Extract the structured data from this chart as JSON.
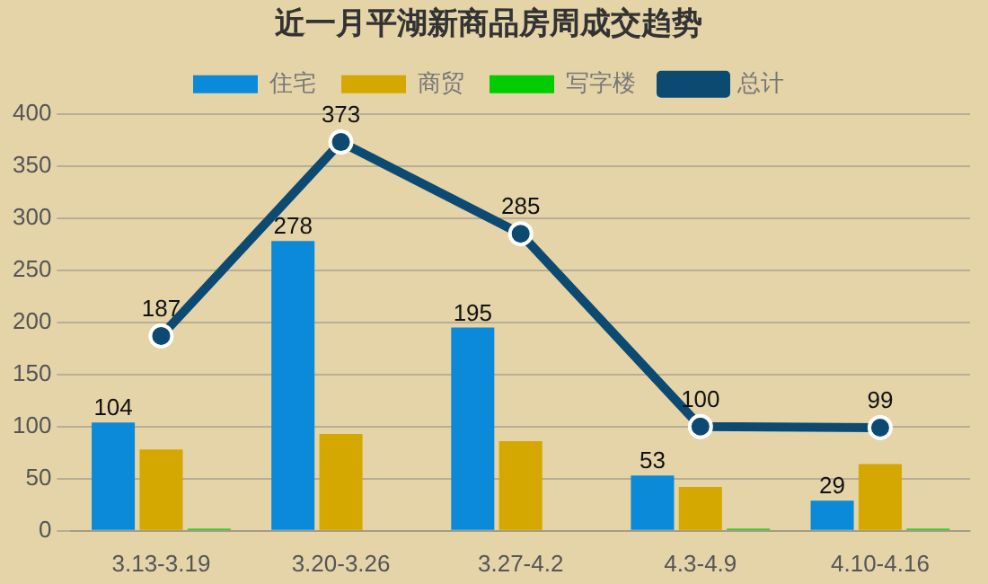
{
  "chart_data": {
    "type": "bar",
    "title": "近一月平湖新商品房周成交趋势",
    "categories": [
      "3.13-3.19",
      "3.20-3.26",
      "3.27-4.2",
      "4.3-4.9",
      "4.10-4.16"
    ],
    "series": [
      {
        "name": "住宅",
        "color": "#0a8ad8",
        "values": [
          104,
          278,
          195,
          53,
          29
        ],
        "value_labels": [
          "104",
          "278",
          "195",
          "53",
          "29"
        ]
      },
      {
        "name": "商贸",
        "color": "#d4a800",
        "values": [
          78,
          93,
          86,
          42,
          64
        ]
      },
      {
        "name": "写字楼",
        "color": "#00cc00",
        "values": [
          2,
          0,
          1,
          2,
          2
        ]
      },
      {
        "name": "总计",
        "type": "line",
        "color": "#0d4a72",
        "values": [
          187,
          373,
          285,
          100,
          99
        ],
        "value_labels": [
          "187",
          "373",
          "285",
          "100",
          "99"
        ],
        "marker": "circle"
      }
    ],
    "ylim": [
      0,
      400
    ],
    "yticks": [
      0,
      50,
      100,
      150,
      200,
      250,
      300,
      350,
      400
    ],
    "grid": "y",
    "legend": "top"
  }
}
